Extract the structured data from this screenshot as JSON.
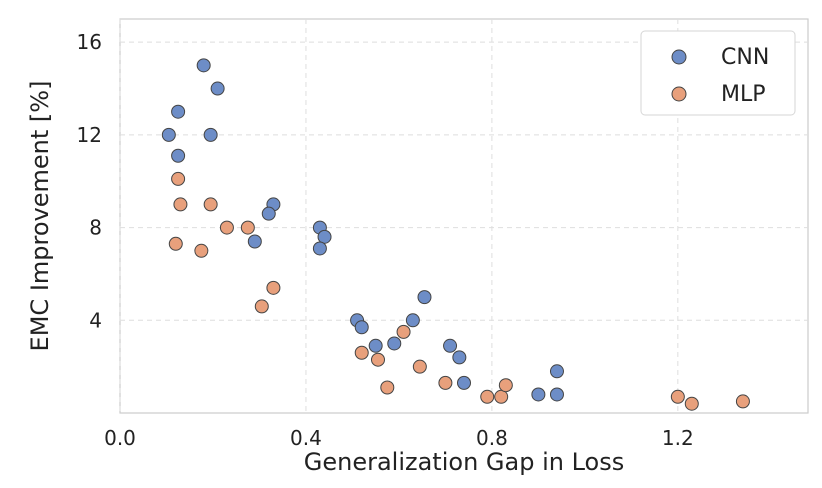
{
  "chart_data": {
    "type": "scatter",
    "title": "",
    "xlabel": "Generalization Gap in Loss",
    "ylabel": "EMC Improvement [%]",
    "xlim": [
      0.0,
      1.48
    ],
    "ylim": [
      0.0,
      17.0
    ],
    "xticks": [
      0.0,
      0.4,
      0.8,
      1.2
    ],
    "xtick_labels": [
      "0.0",
      "0.4",
      "0.8",
      "1.2"
    ],
    "yticks": [
      4,
      8,
      12,
      16
    ],
    "ytick_labels": [
      "4",
      "8",
      "12",
      "16"
    ],
    "grid": true,
    "legend": {
      "position": "top-right",
      "entries": [
        "CNN",
        "MLP"
      ]
    },
    "series": [
      {
        "name": "CNN",
        "color": "#6d8dc7",
        "points": [
          {
            "x": 0.18,
            "y": 15.0
          },
          {
            "x": 0.21,
            "y": 14.0
          },
          {
            "x": 0.125,
            "y": 13.0
          },
          {
            "x": 0.105,
            "y": 12.0
          },
          {
            "x": 0.195,
            "y": 12.0
          },
          {
            "x": 0.125,
            "y": 11.1
          },
          {
            "x": 0.33,
            "y": 9.0
          },
          {
            "x": 0.32,
            "y": 8.6
          },
          {
            "x": 0.29,
            "y": 7.4
          },
          {
            "x": 0.43,
            "y": 8.0
          },
          {
            "x": 0.44,
            "y": 7.6
          },
          {
            "x": 0.43,
            "y": 7.1
          },
          {
            "x": 0.655,
            "y": 5.0
          },
          {
            "x": 0.51,
            "y": 4.0
          },
          {
            "x": 0.52,
            "y": 3.7
          },
          {
            "x": 0.63,
            "y": 4.0
          },
          {
            "x": 0.55,
            "y": 2.9
          },
          {
            "x": 0.59,
            "y": 3.0
          },
          {
            "x": 0.71,
            "y": 2.9
          },
          {
            "x": 0.73,
            "y": 2.4
          },
          {
            "x": 0.74,
            "y": 1.3
          },
          {
            "x": 0.94,
            "y": 1.8
          },
          {
            "x": 0.9,
            "y": 0.8
          },
          {
            "x": 0.94,
            "y": 0.8
          }
        ]
      },
      {
        "name": "MLP",
        "color": "#e8a07c",
        "points": [
          {
            "x": 0.125,
            "y": 10.1
          },
          {
            "x": 0.13,
            "y": 9.0
          },
          {
            "x": 0.195,
            "y": 9.0
          },
          {
            "x": 0.23,
            "y": 8.0
          },
          {
            "x": 0.275,
            "y": 8.0
          },
          {
            "x": 0.12,
            "y": 7.3
          },
          {
            "x": 0.175,
            "y": 7.0
          },
          {
            "x": 0.33,
            "y": 5.4
          },
          {
            "x": 0.305,
            "y": 4.6
          },
          {
            "x": 0.52,
            "y": 2.6
          },
          {
            "x": 0.555,
            "y": 2.3
          },
          {
            "x": 0.61,
            "y": 3.5
          },
          {
            "x": 0.645,
            "y": 2.0
          },
          {
            "x": 0.575,
            "y": 1.1
          },
          {
            "x": 0.7,
            "y": 1.3
          },
          {
            "x": 0.79,
            "y": 0.7
          },
          {
            "x": 0.82,
            "y": 0.7
          },
          {
            "x": 0.83,
            "y": 1.2
          },
          {
            "x": 1.2,
            "y": 0.7
          },
          {
            "x": 1.23,
            "y": 0.4
          },
          {
            "x": 1.34,
            "y": 0.5
          }
        ]
      }
    ]
  }
}
